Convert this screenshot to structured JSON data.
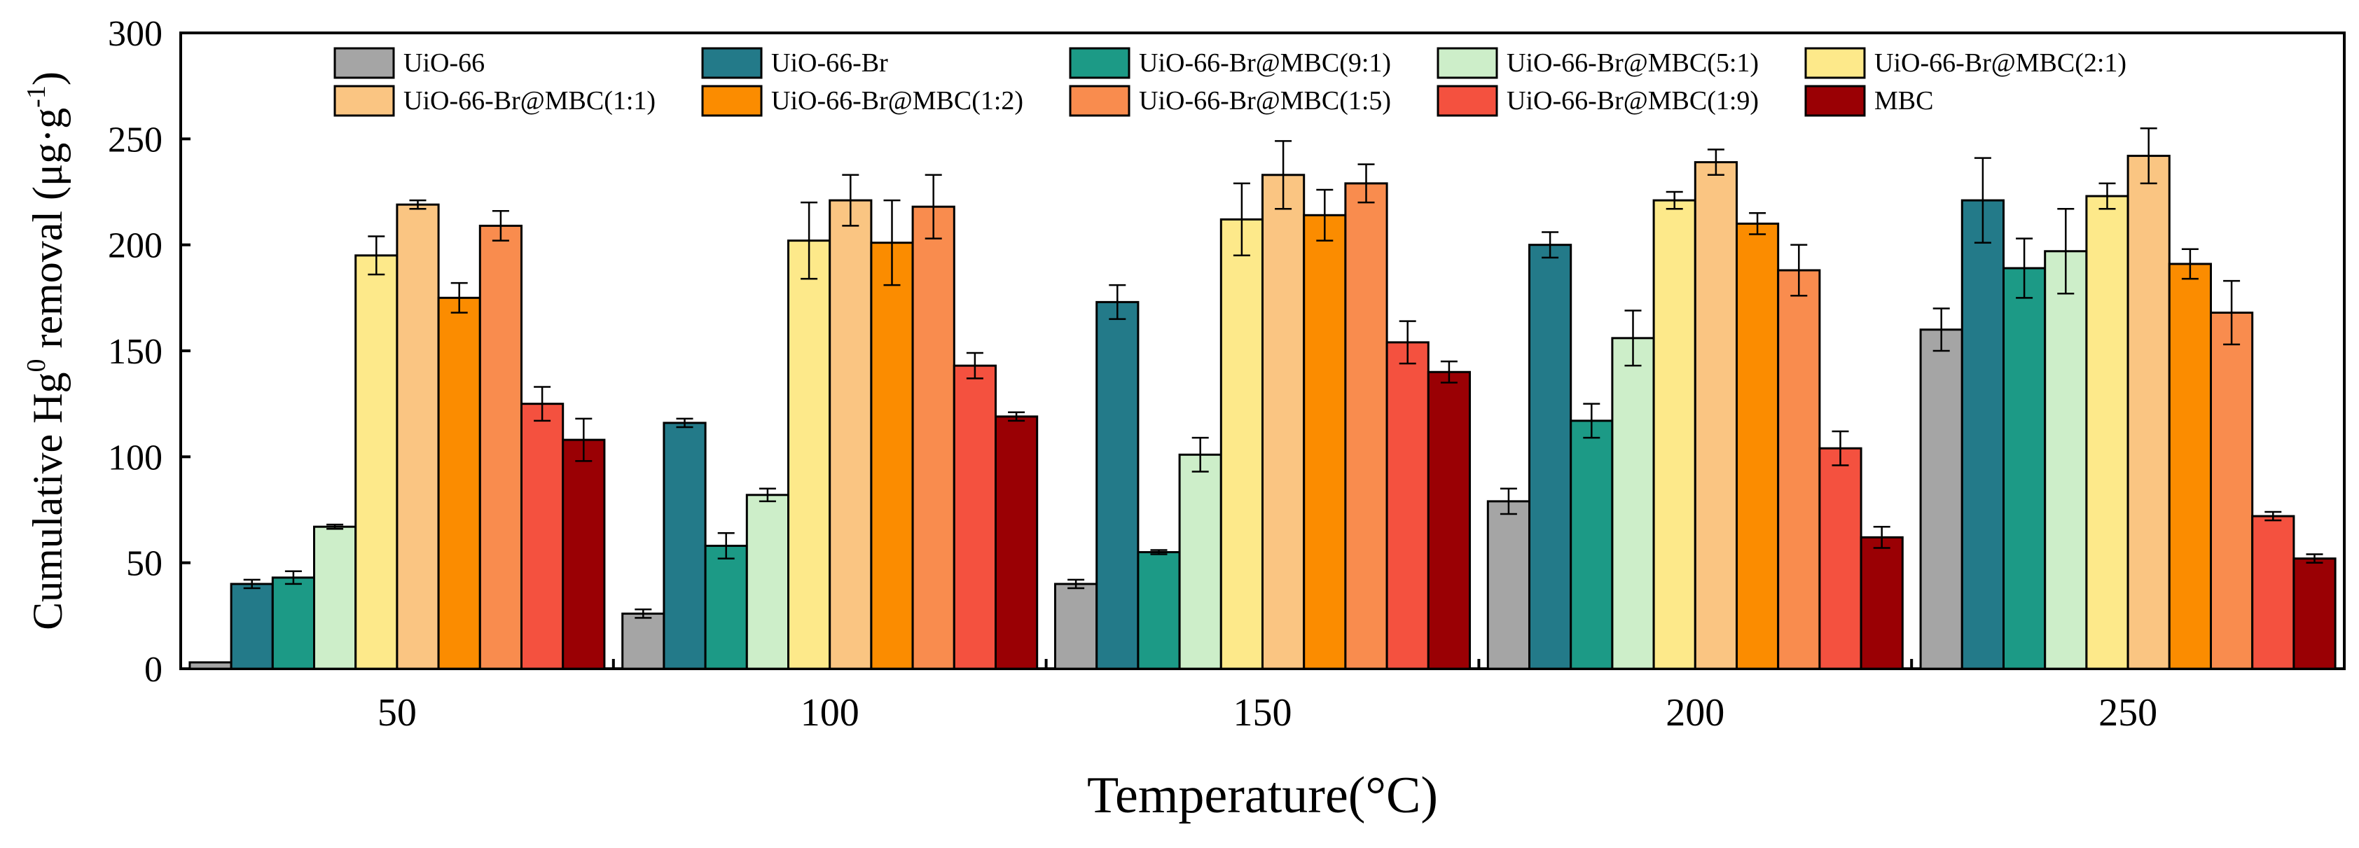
{
  "chart_data": {
    "type": "bar",
    "xlabel": "Temperature(°C)",
    "ylabel": {
      "prefix": "Cumulative Hg",
      "superscript": "0",
      "middle": " removal (μg·g",
      "unit_superscript": "-1",
      "suffix": ")"
    },
    "ylim": [
      0,
      300
    ],
    "yticks": [
      "0",
      "50",
      "100",
      "150",
      "200",
      "250",
      "300"
    ],
    "categories": [
      "50",
      "100",
      "150",
      "200",
      "250"
    ],
    "legend_position": "top",
    "series": [
      {
        "name": "UiO-66",
        "color": "#a5a5a5",
        "values": [
          3,
          26,
          40,
          79,
          160
        ],
        "errors": [
          0,
          2,
          2,
          6,
          10
        ]
      },
      {
        "name": "UiO-66-Br",
        "color": "#237a89",
        "values": [
          40,
          116,
          173,
          200,
          221
        ],
        "errors": [
          2,
          2,
          8,
          6,
          20
        ]
      },
      {
        "name": "UiO-66-Br@MBC(9:1)",
        "color": "#1c9a86",
        "values": [
          43,
          58,
          55,
          117,
          189
        ],
        "errors": [
          3,
          6,
          1,
          8,
          14
        ]
      },
      {
        "name": "UiO-66-Br@MBC(5:1)",
        "color": "#cdeec9",
        "values": [
          67,
          82,
          101,
          156,
          197
        ],
        "errors": [
          1,
          3,
          8,
          13,
          20
        ]
      },
      {
        "name": "UiO-66-Br@MBC(2:1)",
        "color": "#fde98a",
        "values": [
          195,
          202,
          212,
          221,
          223
        ],
        "errors": [
          9,
          18,
          17,
          4,
          6
        ]
      },
      {
        "name": "UiO-66-Br@MBC(1:1)",
        "color": "#fac582",
        "values": [
          219,
          221,
          233,
          239,
          242
        ],
        "errors": [
          2,
          12,
          16,
          6,
          13
        ]
      },
      {
        "name": "UiO-66-Br@MBC(1:2)",
        "color": "#fb8c00",
        "values": [
          175,
          201,
          214,
          210,
          191
        ],
        "errors": [
          7,
          20,
          12,
          5,
          7
        ]
      },
      {
        "name": "UiO-66-Br@MBC(1:5)",
        "color": "#f98c4e",
        "values": [
          209,
          218,
          229,
          188,
          168
        ],
        "errors": [
          7,
          15,
          9,
          12,
          15
        ]
      },
      {
        "name": "UiO-66-Br@MBC(1:9)",
        "color": "#f4513f",
        "values": [
          125,
          143,
          154,
          104,
          72
        ],
        "errors": [
          8,
          6,
          10,
          8,
          2
        ]
      },
      {
        "name": "MBC",
        "color": "#9a0004",
        "values": [
          108,
          119,
          140,
          62,
          52
        ],
        "errors": [
          10,
          2,
          5,
          5,
          2
        ]
      }
    ]
  }
}
